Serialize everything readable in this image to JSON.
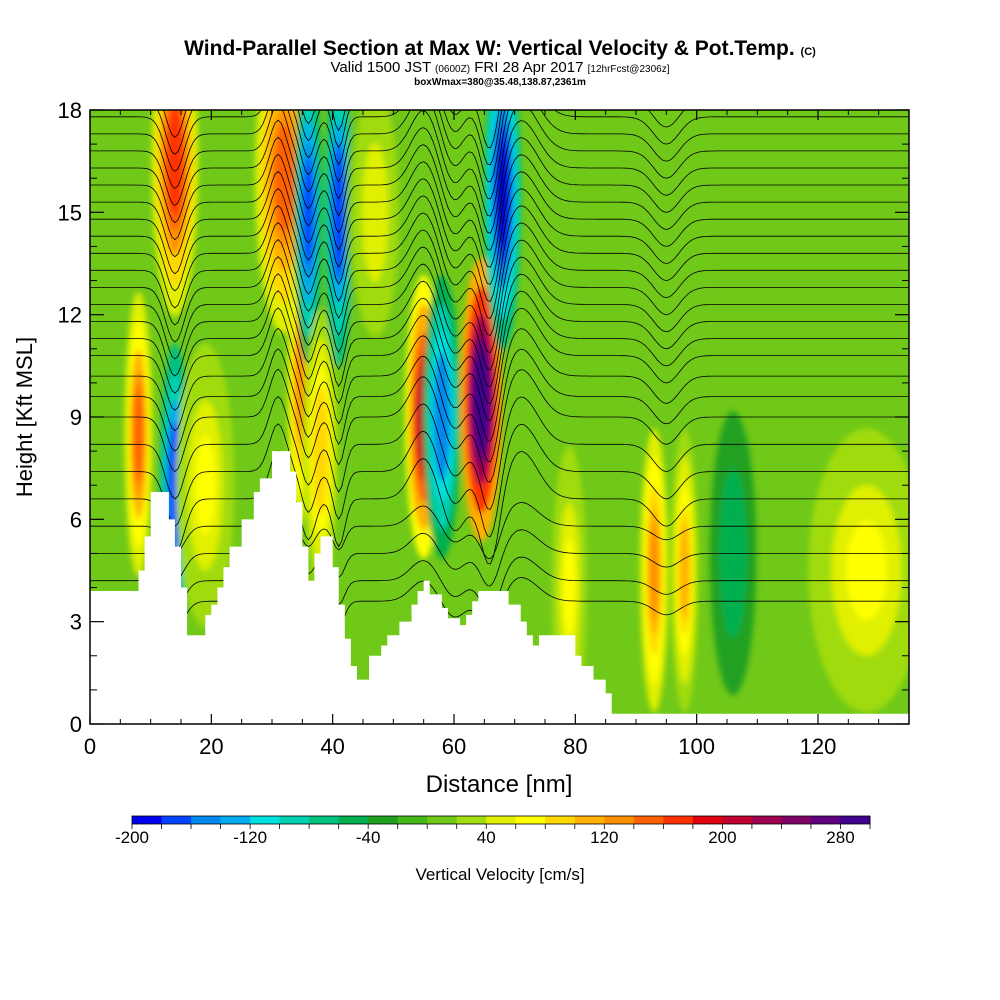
{
  "header": {
    "title": "Wind-Parallel Section at Max W: Vertical Velocity & Pot.Temp.",
    "copyright": "(C)",
    "valid_prefix": "Valid 1500 JST",
    "valid_utc": "(0600Z)",
    "valid_date": "FRI 28 Apr 2017",
    "forecast": "[12hrFcst@2306z]",
    "box_info": "boxWmax=380@35.48,138.87,2361m"
  },
  "chart_data": {
    "type": "heatmap",
    "xlabel": "Distance [nm]",
    "ylabel": "Height [Kft MSL]",
    "xlim": [
      0,
      135
    ],
    "ylim": [
      0,
      18
    ],
    "x_ticks": [
      0,
      20,
      40,
      60,
      80,
      100,
      120
    ],
    "y_ticks": [
      0,
      3,
      6,
      9,
      12,
      15,
      18
    ],
    "colorbar": {
      "label": "Vertical Velocity [cm/s]",
      "min": -200,
      "max": 300,
      "step": 20,
      "tick_values": [
        -200,
        -120,
        -40,
        40,
        120,
        200,
        280
      ],
      "tick_labels": [
        "-200",
        "-120",
        "-40",
        "40",
        "120",
        "200",
        "280"
      ],
      "colors": [
        "#0000ee",
        "#0044ff",
        "#0088ee",
        "#00aaee",
        "#00e0e0",
        "#00d0b0",
        "#00c080",
        "#00b050",
        "#20a020",
        "#44b818",
        "#70c818",
        "#a0dc10",
        "#e0f000",
        "#ffff00",
        "#ffd800",
        "#ffb000",
        "#ff9000",
        "#ff6000",
        "#ff3000",
        "#e00010",
        "#c00030",
        "#a00050",
        "#800068",
        "#600080",
        "#400090"
      ]
    },
    "background_value_cm_s": 0,
    "w_features": [
      {
        "x": 8.0,
        "z": 8.5,
        "value": 140,
        "width_nm": 1.2
      },
      {
        "x": 14.0,
        "z": 7.0,
        "value": -180,
        "width_nm": 1.3
      },
      {
        "x": 14.0,
        "z": 16.5,
        "value": 170,
        "width_nm": 2.0
      },
      {
        "x": 19.0,
        "z": 7.0,
        "value": 60,
        "width_nm": 2.5
      },
      {
        "x": 32.0,
        "z": 16.0,
        "value": 150,
        "width_nm": 2.5
      },
      {
        "x": 34.5,
        "z": 10.0,
        "value": 120,
        "width_nm": 1.0
      },
      {
        "x": 36.0,
        "z": 15.0,
        "value": -170,
        "width_nm": 1.2
      },
      {
        "x": 41.0,
        "z": 15.0,
        "value": -180,
        "width_nm": 1.2
      },
      {
        "x": 38.0,
        "z": 8.0,
        "value": 90,
        "width_nm": 1.5
      },
      {
        "x": 47.0,
        "z": 15.0,
        "value": 50,
        "width_nm": 2.5
      },
      {
        "x": 55.0,
        "z": 9.0,
        "value": 200,
        "width_nm": 1.6
      },
      {
        "x": 58.0,
        "z": 9.0,
        "value": -160,
        "width_nm": 1.6
      },
      {
        "x": 64.5,
        "z": 9.5,
        "value": 300,
        "width_nm": 1.8
      },
      {
        "x": 68.0,
        "z": 15.5,
        "value": -200,
        "width_nm": 1.6
      },
      {
        "x": 79.0,
        "z": 4.0,
        "value": 60,
        "width_nm": 1.5
      },
      {
        "x": 93.0,
        "z": 4.5,
        "value": 120,
        "width_nm": 1.2
      },
      {
        "x": 98.0,
        "z": 4.5,
        "value": 100,
        "width_nm": 1.2
      },
      {
        "x": 106.0,
        "z": 5.0,
        "value": -60,
        "width_nm": 2.0
      },
      {
        "x": 128.0,
        "z": 4.5,
        "value": 60,
        "width_nm": 5.0
      }
    ],
    "terrain_height_kft": [
      {
        "x": 0,
        "h": 3.9
      },
      {
        "x": 2,
        "h": 3.9
      },
      {
        "x": 4,
        "h": 3.9
      },
      {
        "x": 6,
        "h": 3.9
      },
      {
        "x": 8,
        "h": 4.5
      },
      {
        "x": 9,
        "h": 5.5
      },
      {
        "x": 10,
        "h": 6.8
      },
      {
        "x": 12,
        "h": 6.8
      },
      {
        "x": 13,
        "h": 6.0
      },
      {
        "x": 14,
        "h": 5.2
      },
      {
        "x": 15,
        "h": 4.0
      },
      {
        "x": 16,
        "h": 2.6
      },
      {
        "x": 18,
        "h": 2.6
      },
      {
        "x": 19,
        "h": 3.2
      },
      {
        "x": 20,
        "h": 3.5
      },
      {
        "x": 21,
        "h": 4.0
      },
      {
        "x": 22,
        "h": 4.6
      },
      {
        "x": 23,
        "h": 5.2
      },
      {
        "x": 25,
        "h": 6.0
      },
      {
        "x": 27,
        "h": 6.8
      },
      {
        "x": 28,
        "h": 7.2
      },
      {
        "x": 30,
        "h": 8.0
      },
      {
        "x": 32,
        "h": 8.0
      },
      {
        "x": 33,
        "h": 7.4
      },
      {
        "x": 34,
        "h": 6.5
      },
      {
        "x": 35,
        "h": 5.2
      },
      {
        "x": 36,
        "h": 4.2
      },
      {
        "x": 37,
        "h": 5.0
      },
      {
        "x": 38,
        "h": 5.5
      },
      {
        "x": 39,
        "h": 5.5
      },
      {
        "x": 40,
        "h": 4.6
      },
      {
        "x": 41,
        "h": 3.5
      },
      {
        "x": 42,
        "h": 2.5
      },
      {
        "x": 43,
        "h": 1.7
      },
      {
        "x": 44,
        "h": 1.3
      },
      {
        "x": 45,
        "h": 1.3
      },
      {
        "x": 46,
        "h": 2.0
      },
      {
        "x": 48,
        "h": 2.3
      },
      {
        "x": 49,
        "h": 2.6
      },
      {
        "x": 51,
        "h": 3.0
      },
      {
        "x": 53,
        "h": 3.5
      },
      {
        "x": 54,
        "h": 3.9
      },
      {
        "x": 55,
        "h": 4.2
      },
      {
        "x": 56,
        "h": 3.8
      },
      {
        "x": 58,
        "h": 3.4
      },
      {
        "x": 59,
        "h": 3.1
      },
      {
        "x": 61,
        "h": 2.9
      },
      {
        "x": 62,
        "h": 3.2
      },
      {
        "x": 63,
        "h": 3.6
      },
      {
        "x": 64,
        "h": 3.9
      },
      {
        "x": 67,
        "h": 3.9
      },
      {
        "x": 69,
        "h": 3.5
      },
      {
        "x": 71,
        "h": 3.0
      },
      {
        "x": 72,
        "h": 2.6
      },
      {
        "x": 73,
        "h": 2.3
      },
      {
        "x": 74,
        "h": 2.6
      },
      {
        "x": 79,
        "h": 2.6
      },
      {
        "x": 80,
        "h": 2.0
      },
      {
        "x": 81,
        "h": 1.7
      },
      {
        "x": 83,
        "h": 1.3
      },
      {
        "x": 85,
        "h": 0.9
      },
      {
        "x": 86,
        "h": 0.3
      },
      {
        "x": 135,
        "h": 0.3
      }
    ],
    "isentrope_base_kft": [
      3.6,
      4.2,
      5.0,
      5.8,
      6.6,
      7.4,
      8.2,
      9.0,
      9.6,
      10.2,
      10.8,
      11.3,
      11.8,
      12.3,
      12.8,
      13.3,
      13.8,
      14.3,
      14.8,
      15.3,
      15.8,
      16.3,
      16.8,
      17.3,
      17.8,
      18.3,
      18.8
    ],
    "isentrope_perturbations": [
      {
        "x": 14,
        "dz": -1.6,
        "width": 2.2
      },
      {
        "x": 31,
        "dz": 1.4,
        "width": 2.0
      },
      {
        "x": 36,
        "dz": -1.2,
        "width": 1.6
      },
      {
        "x": 41,
        "dz": -1.4,
        "width": 1.4
      },
      {
        "x": 55,
        "dz": 1.2,
        "width": 3.0
      },
      {
        "x": 60,
        "dz": -1.0,
        "width": 2.5
      },
      {
        "x": 66,
        "dz": -2.2,
        "width": 2.2
      },
      {
        "x": 71,
        "dz": 1.4,
        "width": 4.0
      },
      {
        "x": 95,
        "dz": -0.8,
        "width": 3.0
      }
    ]
  }
}
